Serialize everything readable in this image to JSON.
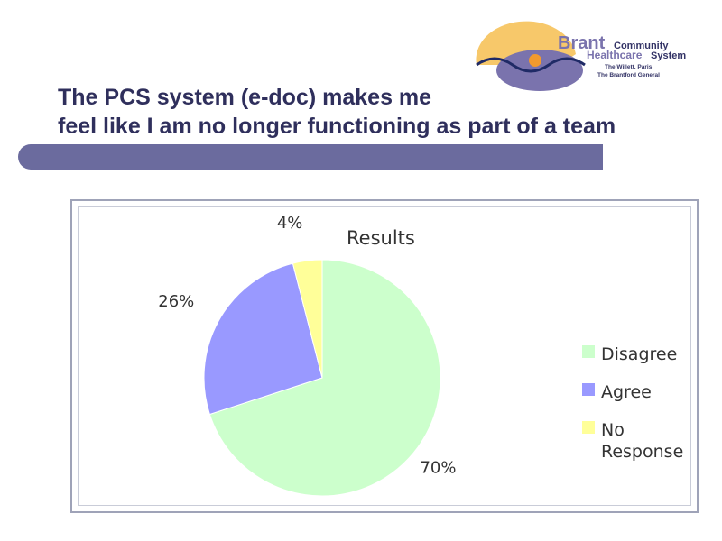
{
  "slide": {
    "title_line1": "The PCS system (e-doc) makes me",
    "title_line2": "feel like I am no longer functioning as part of a team"
  },
  "logo": {
    "brand": "Brant",
    "community": "Community",
    "healthcare": "Healthcare",
    "system": "System",
    "sub1": "The Willett, Paris",
    "sub2": "The Brantford General"
  },
  "colors": {
    "title": "#2f2f5c",
    "bar": "#6b6b9e"
  },
  "chart_data": {
    "type": "pie",
    "title": "Results",
    "categories": [
      "Disagree",
      "Agree",
      "No Response"
    ],
    "values": [
      70,
      26,
      4
    ],
    "labels": [
      "70%",
      "26%",
      "4%"
    ],
    "colors": [
      "#ccffcc",
      "#9999ff",
      "#ffff99"
    ],
    "legend_position": "right",
    "start": "top",
    "direction": "clockwise"
  }
}
